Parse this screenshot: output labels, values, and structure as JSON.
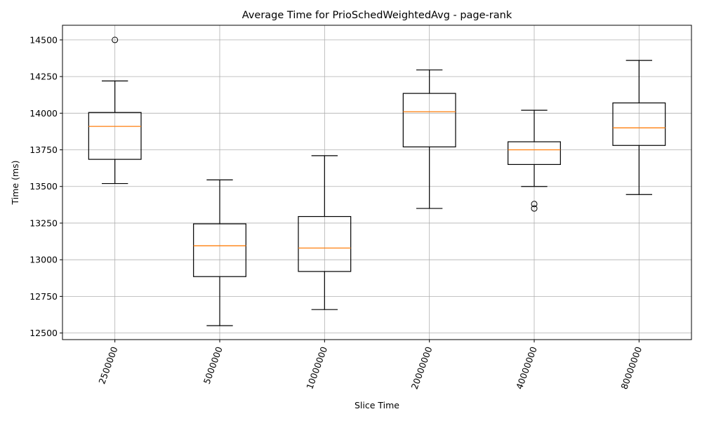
{
  "chart_data": {
    "type": "box",
    "title": "Average Time for PrioSchedWeightedAvg - page-rank",
    "xlabel": "Slice Time",
    "ylabel": "Time (ms)",
    "categories": [
      "2500000",
      "5000000",
      "10000000",
      "20000000",
      "40000000",
      "80000000"
    ],
    "ylim": [
      12455,
      14600
    ],
    "yticks": [
      12500,
      12750,
      13000,
      13250,
      13500,
      13750,
      14000,
      14250,
      14500
    ],
    "grid": true,
    "xtick_rotation_deg": 70,
    "boxes": [
      {
        "whisker_low": 13520,
        "q1": 13685,
        "median": 13910,
        "q3": 14005,
        "whisker_high": 14220,
        "fliers": [
          14500
        ]
      },
      {
        "whisker_low": 12550,
        "q1": 12885,
        "median": 13095,
        "q3": 13245,
        "whisker_high": 13545,
        "fliers": []
      },
      {
        "whisker_low": 12660,
        "q1": 12920,
        "median": 13080,
        "q3": 13295,
        "whisker_high": 13710,
        "fliers": []
      },
      {
        "whisker_low": 13350,
        "q1": 13770,
        "median": 14010,
        "q3": 14135,
        "whisker_high": 14295,
        "fliers": []
      },
      {
        "whisker_low": 13500,
        "q1": 13650,
        "median": 13750,
        "q3": 13805,
        "whisker_high": 14020,
        "fliers": [
          13380,
          13350
        ]
      },
      {
        "whisker_low": 13445,
        "q1": 13780,
        "median": 13900,
        "q3": 14070,
        "whisker_high": 14360,
        "fliers": []
      }
    ],
    "colors": {
      "box": "#000000",
      "median": "#ff7f0e",
      "grid": "#b0b0b0"
    }
  }
}
